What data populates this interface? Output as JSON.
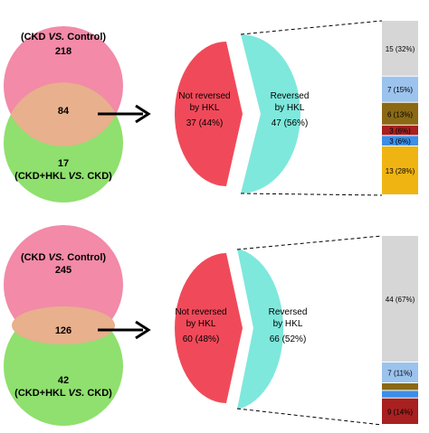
{
  "panels": [
    {
      "venn": {
        "top_label_prefix": "(CKD ",
        "top_label_vs": "VS.",
        "top_label_suffix": " Control)",
        "top_count": "218",
        "overlap_count": "84",
        "bottom_count": "17",
        "bottom_label_prefix": "(CKD+HKL ",
        "bottom_label_vs": "VS.",
        "bottom_label_suffix": " CKD)"
      },
      "pie": {
        "left_line1": "Not reversed",
        "left_line2": "by HKL",
        "left_value": "37 (44%)",
        "right_line1": "Reversed",
        "right_line2": "by HKL",
        "right_value": "47 (56%)"
      },
      "bar_segments": [
        {
          "label": "15 (32%)",
          "fraction": 0.32,
          "color": "#d6d6d6"
        },
        {
          "label": "7 (15%)",
          "fraction": 0.15,
          "color": "#9cc3ee"
        },
        {
          "label": "6 (13%)",
          "fraction": 0.13,
          "color": "#8b6914"
        },
        {
          "label": "3 (6%)",
          "fraction": 0.06,
          "color": "#a82020"
        },
        {
          "label": "3 (6%)",
          "fraction": 0.06,
          "color": "#3d8ee8"
        },
        {
          "label": "13 (28%)",
          "fraction": 0.28,
          "color": "#f0b412"
        }
      ]
    },
    {
      "venn": {
        "top_label_prefix": "(CKD ",
        "top_label_vs": "VS.",
        "top_label_suffix": " Control)",
        "top_count": "245",
        "overlap_count": "126",
        "bottom_count": "42",
        "bottom_label_prefix": "(CKD+HKL ",
        "bottom_label_vs": "VS.",
        "bottom_label_suffix": " CKD)"
      },
      "pie": {
        "left_line1": "Not reversed",
        "left_line2": "by HKL",
        "left_value": "60 (48%)",
        "right_line1": "Reversed",
        "right_line2": "by HKL",
        "right_value": "66 (52%)"
      },
      "bar_segments": [
        {
          "label": "44 (67%)",
          "fraction": 0.67,
          "color": "#d6d6d6"
        },
        {
          "label": "7 (11%)",
          "fraction": 0.11,
          "color": "#9cc3ee"
        },
        {
          "label": "",
          "fraction": 0.04,
          "color": "#8b6914"
        },
        {
          "label": "",
          "fraction": 0.04,
          "color": "#3d8ee8"
        },
        {
          "label": "9 (14%)",
          "fraction": 0.14,
          "color": "#a82020"
        }
      ]
    }
  ],
  "colors": {
    "venn_top": "#f28aa8",
    "venn_bottom": "#8fe06e",
    "venn_overlap": "#e8b08c",
    "pie_left": "#f04a5a",
    "pie_right": "#7ee8dc",
    "arrow": "#000000"
  }
}
